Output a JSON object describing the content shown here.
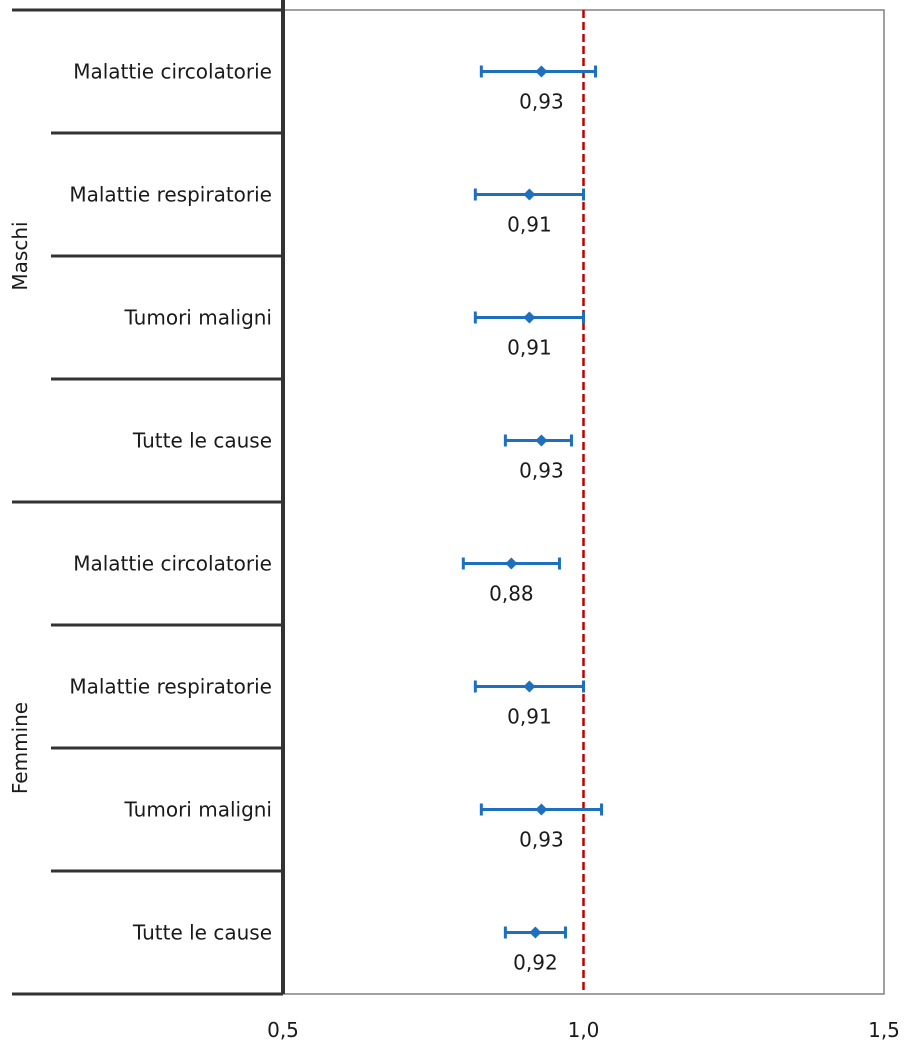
{
  "chart_data": {
    "type": "forest",
    "xlim": [
      0.5,
      1.5
    ],
    "x_ticks": [
      {
        "value": 0.5,
        "label": "0,5"
      },
      {
        "value": 1.0,
        "label": "1,0"
      },
      {
        "value": 1.5,
        "label": "1,5"
      }
    ],
    "reference_line": {
      "value": 1.0,
      "style": "dashed",
      "color": "#c00000"
    },
    "grid": false,
    "colors": {
      "marker": "#1f6fbf",
      "frame": "#808080",
      "structure": "#333333"
    },
    "groups": [
      {
        "name": "Maschi",
        "rows": [
          {
            "label": "Malattie circolatorie",
            "estimate": 0.93,
            "estimate_label": "0,93",
            "ci_low": 0.83,
            "ci_high": 1.02
          },
          {
            "label": "Malattie respiratorie",
            "estimate": 0.91,
            "estimate_label": "0,91",
            "ci_low": 0.82,
            "ci_high": 1.0
          },
          {
            "label": "Tumori maligni",
            "estimate": 0.91,
            "estimate_label": "0,91",
            "ci_low": 0.82,
            "ci_high": 1.0
          },
          {
            "label": "Tutte le cause",
            "estimate": 0.93,
            "estimate_label": "0,93",
            "ci_low": 0.87,
            "ci_high": 0.98
          }
        ]
      },
      {
        "name": "Femmine",
        "rows": [
          {
            "label": "Malattie circolatorie",
            "estimate": 0.88,
            "estimate_label": "0,88",
            "ci_low": 0.8,
            "ci_high": 0.96
          },
          {
            "label": "Malattie respiratorie",
            "estimate": 0.91,
            "estimate_label": "0,91",
            "ci_low": 0.82,
            "ci_high": 1.0
          },
          {
            "label": "Tumori maligni",
            "estimate": 0.93,
            "estimate_label": "0,93",
            "ci_low": 0.83,
            "ci_high": 1.03
          },
          {
            "label": "Tutte le cause",
            "estimate": 0.92,
            "estimate_label": "0,92",
            "ci_low": 0.87,
            "ci_high": 0.97
          }
        ]
      }
    ]
  }
}
